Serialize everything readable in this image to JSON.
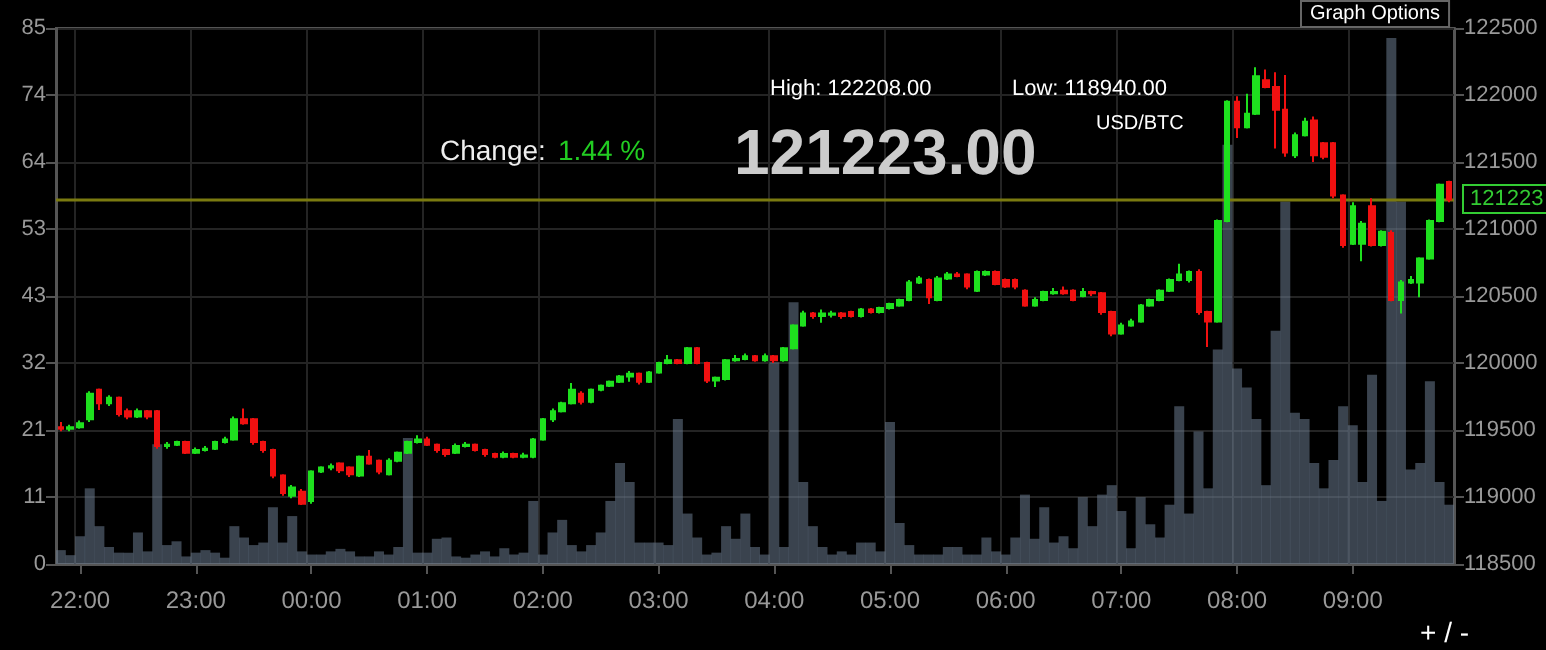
{
  "chart_data": {
    "type": "candlestick",
    "categories": [
      null,
      null,
      "22:00",
      null,
      null,
      null,
      null,
      null,
      null,
      null,
      null,
      null,
      null,
      null,
      "23:00",
      null,
      null,
      null,
      null,
      null,
      null,
      null,
      null,
      null,
      null,
      null,
      "00:00",
      null,
      null,
      null,
      null,
      null,
      null,
      null,
      null,
      null,
      null,
      null,
      "01:00",
      null,
      null,
      null,
      null,
      null,
      null,
      null,
      null,
      null,
      null,
      null,
      "02:00",
      null,
      null,
      null,
      null,
      null,
      null,
      null,
      null,
      null,
      null,
      null,
      "03:00",
      null,
      null,
      null,
      null,
      null,
      null,
      null,
      null,
      null,
      null,
      null,
      "04:00",
      null,
      null,
      null,
      null,
      null,
      null,
      null,
      null,
      null,
      null,
      null,
      "05:00",
      null,
      null,
      null,
      null,
      null,
      null,
      null,
      null,
      null,
      null,
      null,
      "06:00",
      null,
      null,
      null,
      null,
      null,
      null,
      null,
      null,
      null,
      null,
      null,
      "07:00",
      null,
      null,
      null,
      null,
      null,
      null,
      null,
      null,
      null,
      null,
      null,
      "08:00",
      null,
      null,
      null,
      null,
      null,
      null,
      null,
      null,
      null,
      null,
      null,
      "09:00",
      null,
      null,
      null,
      null,
      null,
      null,
      null,
      null,
      null,
      null
    ],
    "ylim": [
      0,
      85
    ],
    "yticks": [
      0,
      {
        "value": 10.625,
        "label": "11"
      },
      {
        "value": 21.25,
        "label": "21"
      },
      {
        "value": 31.875,
        "label": "32"
      },
      {
        "value": 42.5,
        "label": "43"
      },
      {
        "value": 53.125,
        "label": "53"
      },
      {
        "value": 63.75,
        "label": "64"
      },
      {
        "value": 74.375,
        "label": "74"
      },
      85
    ],
    "y2lim": [
      118500,
      122500
    ],
    "y2ticks": [
      118500,
      119000,
      119500,
      120000,
      120500,
      121000,
      121500,
      122000,
      122500
    ],
    "grid": true,
    "series": [
      {
        "type": "bar",
        "axis": "y",
        "color": "#6a7a8e",
        "values": [
          2.2,
          1.4,
          4.4,
          12,
          6,
          2.7,
          1.8,
          1.8,
          5,
          2,
          19,
          3,
          3.6,
          1.2,
          1.8,
          2.2,
          1.8,
          1,
          6,
          4.2,
          3,
          3.4,
          9,
          3.4,
          7.6,
          2,
          1.5,
          1.5,
          2,
          2.4,
          2,
          1.2,
          1.2,
          2,
          1.5,
          2.7,
          20,
          1.8,
          1.8,
          4,
          4.2,
          1.2,
          1,
          1.5,
          2,
          1.2,
          2.5,
          1.5,
          1.8,
          10,
          1.5,
          5,
          7,
          3,
          2,
          3,
          5,
          10,
          16,
          13,
          3.4,
          3.4,
          3.4,
          3,
          23,
          8,
          4.2,
          1.5,
          1.8,
          6,
          4,
          8,
          2.7,
          1.5,
          32,
          2.7,
          41.5,
          13,
          6,
          2.7,
          1.5,
          2,
          1.5,
          3.4,
          3.4,
          2,
          22.5,
          6.5,
          3,
          1.5,
          1.5,
          1.5,
          2.7,
          2.7,
          1.5,
          1.5,
          4.2,
          2,
          1.5,
          4.2,
          11,
          4,
          9,
          3.4,
          4.4,
          2.5,
          10.6,
          6,
          11,
          12.5,
          8.4,
          2.5,
          10.6,
          6.3,
          4.2,
          9.4,
          25,
          8,
          21,
          12,
          34,
          66.5,
          31,
          28,
          23,
          12.5,
          37,
          57.5,
          24,
          23,
          16,
          12,
          16.5,
          25,
          22,
          13,
          30,
          10,
          83.4,
          57.5,
          15,
          16,
          29,
          13,
          9.4
        ]
      },
      {
        "axis": "y2",
        "ohlc": [
          [
            119520,
            119560,
            119490,
            119510
          ],
          [
            119510,
            119540,
            119490,
            119520
          ],
          [
            119520,
            119570,
            119510,
            119550
          ],
          [
            119580,
            119790,
            119560,
            119770
          ],
          [
            119800,
            119810,
            119650,
            119700
          ],
          [
            119700,
            119760,
            119680,
            119740
          ],
          [
            119740,
            119750,
            119600,
            119620
          ],
          [
            119640,
            119660,
            119580,
            119600
          ],
          [
            119600,
            119660,
            119590,
            119640
          ],
          [
            119640,
            119650,
            119580,
            119600
          ],
          [
            119640,
            119650,
            119360,
            119380
          ],
          [
            119380,
            119410,
            119360,
            119390
          ],
          [
            119390,
            119420,
            119380,
            119410
          ],
          [
            119410,
            119420,
            119320,
            119330
          ],
          [
            119330,
            119370,
            119320,
            119350
          ],
          [
            119350,
            119380,
            119340,
            119360
          ],
          [
            119360,
            119420,
            119350,
            119410
          ],
          [
            119410,
            119450,
            119400,
            119430
          ],
          [
            119430,
            119600,
            119420,
            119580
          ],
          [
            119580,
            119660,
            119540,
            119550
          ],
          [
            119580,
            119590,
            119390,
            119410
          ],
          [
            119410,
            119420,
            119330,
            119350
          ],
          [
            119350,
            119360,
            119140,
            119160
          ],
          [
            119160,
            119170,
            119010,
            119030
          ],
          [
            119010,
            119090,
            118990,
            119070
          ],
          [
            119040,
            119060,
            118940,
            118950
          ],
          [
            118970,
            119200,
            118950,
            119190
          ],
          [
            119190,
            119230,
            119180,
            119220
          ],
          [
            119220,
            119250,
            119200,
            119230
          ],
          [
            119250,
            119260,
            119180,
            119200
          ],
          [
            119220,
            119230,
            119150,
            119170
          ],
          [
            119160,
            119310,
            119150,
            119300
          ],
          [
            119300,
            119350,
            119240,
            119250
          ],
          [
            119270,
            119280,
            119170,
            119190
          ],
          [
            119170,
            119290,
            119160,
            119270
          ],
          [
            119270,
            119340,
            119260,
            119330
          ],
          [
            119330,
            119420,
            119320,
            119410
          ],
          [
            119410,
            119460,
            119400,
            119430
          ],
          [
            119430,
            119450,
            119380,
            119390
          ],
          [
            119390,
            119400,
            119330,
            119350
          ],
          [
            119350,
            119360,
            119300,
            119320
          ],
          [
            119330,
            119400,
            119320,
            119380
          ],
          [
            119380,
            119410,
            119370,
            119390
          ],
          [
            119390,
            119400,
            119340,
            119350
          ],
          [
            119350,
            119360,
            119300,
            119320
          ],
          [
            119320,
            119330,
            119290,
            119300
          ],
          [
            119300,
            119340,
            119290,
            119320
          ],
          [
            119320,
            119330,
            119290,
            119300
          ],
          [
            119300,
            119330,
            119290,
            119310
          ],
          [
            119300,
            119440,
            119290,
            119430
          ],
          [
            119430,
            119590,
            119420,
            119580
          ],
          [
            119580,
            119660,
            119560,
            119640
          ],
          [
            119640,
            119710,
            119630,
            119700
          ],
          [
            119700,
            119850,
            119690,
            119800
          ],
          [
            119770,
            119790,
            119690,
            119710
          ],
          [
            119710,
            119810,
            119700,
            119800
          ],
          [
            119800,
            119840,
            119790,
            119830
          ],
          [
            119830,
            119870,
            119820,
            119860
          ],
          [
            119860,
            119910,
            119850,
            119900
          ],
          [
            119900,
            119940,
            119860,
            119920
          ],
          [
            119920,
            119930,
            119840,
            119860
          ],
          [
            119860,
            119940,
            119850,
            119930
          ],
          [
            119930,
            120010,
            119920,
            120000
          ],
          [
            120000,
            120060,
            119990,
            120020
          ],
          [
            120020,
            120030,
            119990,
            120000
          ],
          [
            120000,
            120120,
            119990,
            120110
          ],
          [
            120110,
            120120,
            119990,
            120000
          ],
          [
            120000,
            120010,
            119850,
            119870
          ],
          [
            119870,
            119900,
            119820,
            119890
          ],
          [
            119880,
            120030,
            119870,
            120020
          ],
          [
            120020,
            120060,
            120010,
            120030
          ],
          [
            120030,
            120070,
            120020,
            120050
          ],
          [
            120050,
            120060,
            120010,
            120020
          ],
          [
            120020,
            120070,
            120010,
            120050
          ],
          [
            120050,
            120060,
            120000,
            120020
          ],
          [
            120020,
            120120,
            120010,
            120110
          ],
          [
            120110,
            120290,
            120100,
            120280
          ],
          [
            120280,
            120390,
            120270,
            120370
          ],
          [
            120370,
            120380,
            120330,
            120350
          ],
          [
            120350,
            120400,
            120300,
            120370
          ],
          [
            120360,
            120390,
            120340,
            120370
          ],
          [
            120370,
            120380,
            120330,
            120350
          ],
          [
            120380,
            120390,
            120340,
            120350
          ],
          [
            120350,
            120410,
            120340,
            120400
          ],
          [
            120400,
            120410,
            120370,
            120380
          ],
          [
            120380,
            120420,
            120370,
            120410
          ],
          [
            120410,
            120450,
            120400,
            120440
          ],
          [
            120430,
            120480,
            120420,
            120470
          ],
          [
            120470,
            120620,
            120460,
            120600
          ],
          [
            120600,
            120650,
            120590,
            120630
          ],
          [
            120620,
            120630,
            120440,
            120490
          ],
          [
            120470,
            120650,
            120460,
            120630
          ],
          [
            120630,
            120680,
            120620,
            120660
          ],
          [
            120660,
            120680,
            120640,
            120650
          ],
          [
            120660,
            120670,
            120550,
            120570
          ],
          [
            120540,
            120690,
            120530,
            120680
          ],
          [
            120660,
            120690,
            120650,
            120680
          ],
          [
            120680,
            120690,
            120580,
            120590
          ],
          [
            120620,
            120630,
            120560,
            120570
          ],
          [
            120620,
            120630,
            120550,
            120570
          ],
          [
            120540,
            120550,
            120420,
            120430
          ],
          [
            120430,
            120490,
            120420,
            120470
          ],
          [
            120470,
            120540,
            120460,
            120530
          ],
          [
            120520,
            120560,
            120510,
            120530
          ],
          [
            120540,
            120570,
            120510,
            120520
          ],
          [
            120540,
            120550,
            120460,
            120470
          ],
          [
            120500,
            120560,
            120490,
            120530
          ],
          [
            120530,
            120540,
            120500,
            120520
          ],
          [
            120520,
            120530,
            120360,
            120380
          ],
          [
            120380,
            120390,
            120200,
            120220
          ],
          [
            120220,
            120300,
            120210,
            120280
          ],
          [
            120280,
            120330,
            120270,
            120310
          ],
          [
            120310,
            120440,
            120300,
            120430
          ],
          [
            120430,
            120480,
            120420,
            120470
          ],
          [
            120470,
            120550,
            120460,
            120540
          ],
          [
            120540,
            120630,
            120530,
            120620
          ],
          [
            120620,
            120740,
            120610,
            120660
          ],
          [
            120620,
            120690,
            120600,
            120680
          ],
          [
            120680,
            120700,
            120360,
            120380
          ],
          [
            120380,
            120390,
            120120,
            120310
          ],
          [
            120310,
            121070,
            120300,
            121060
          ],
          [
            121060,
            121960,
            121050,
            121950
          ],
          [
            121950,
            121990,
            121680,
            121760
          ],
          [
            121760,
            122010,
            121750,
            121860
          ],
          [
            121860,
            122208,
            121850,
            122140
          ],
          [
            122110,
            122190,
            122050,
            122060
          ],
          [
            122060,
            122170,
            121600,
            121890
          ],
          [
            121890,
            122150,
            121540,
            121570
          ],
          [
            121550,
            121720,
            121530,
            121700
          ],
          [
            121700,
            121830,
            121690,
            121800
          ],
          [
            121810,
            121840,
            121500,
            121550
          ],
          [
            121640,
            121650,
            121520,
            121540
          ],
          [
            121640,
            121650,
            121230,
            121250
          ],
          [
            121250,
            121260,
            120860,
            120880
          ],
          [
            120890,
            121200,
            120880,
            121170
          ],
          [
            120890,
            121060,
            120760,
            121040
          ],
          [
            121170,
            121230,
            120870,
            120880
          ],
          [
            120880,
            120990,
            120870,
            120980
          ],
          [
            120970,
            120990,
            120460,
            120470
          ],
          [
            120470,
            120620,
            120370,
            120600
          ],
          [
            120600,
            120650,
            120590,
            120620
          ],
          [
            120600,
            120790,
            120490,
            120780
          ],
          [
            120780,
            121070,
            120770,
            121060
          ],
          [
            121060,
            121340,
            121050,
            121330
          ],
          [
            121350,
            121360,
            121200,
            121220
          ]
        ],
        "colors": [
          "#f01010",
          "#1ee01e",
          "#1ee01e",
          "#1ee01e",
          "#f01010",
          "#1ee01e",
          "#f01010",
          "#f01010",
          "#1ee01e",
          "#f01010",
          "#f01010",
          "#1ee01e",
          "#1ee01e",
          "#f01010",
          "#1ee01e",
          "#1ee01e",
          "#1ee01e",
          "#1ee01e",
          "#1ee01e",
          "#f01010",
          "#f01010",
          "#f01010",
          "#f01010",
          "#f01010",
          "#1ee01e",
          "#f01010",
          "#1ee01e",
          "#1ee01e",
          "#1ee01e",
          "#f01010",
          "#f01010",
          "#1ee01e",
          "#f01010",
          "#f01010",
          "#1ee01e",
          "#1ee01e",
          "#1ee01e",
          "#1ee01e",
          "#f01010",
          "#f01010",
          "#f01010",
          "#1ee01e",
          "#1ee01e",
          "#f01010",
          "#f01010",
          "#f01010",
          "#1ee01e",
          "#f01010",
          "#1ee01e",
          "#1ee01e",
          "#1ee01e",
          "#1ee01e",
          "#1ee01e",
          "#1ee01e",
          "#f01010",
          "#1ee01e",
          "#1ee01e",
          "#1ee01e",
          "#1ee01e",
          "#1ee01e",
          "#f01010",
          "#1ee01e",
          "#1ee01e",
          "#1ee01e",
          "#f01010",
          "#1ee01e",
          "#f01010",
          "#f01010",
          "#1ee01e",
          "#1ee01e",
          "#1ee01e",
          "#1ee01e",
          "#f01010",
          "#1ee01e",
          "#f01010",
          "#1ee01e",
          "#1ee01e",
          "#1ee01e",
          "#f01010",
          "#1ee01e",
          "#1ee01e",
          "#f01010",
          "#f01010",
          "#1ee01e",
          "#f01010",
          "#1ee01e",
          "#1ee01e",
          "#1ee01e",
          "#1ee01e",
          "#1ee01e",
          "#f01010",
          "#1ee01e",
          "#1ee01e",
          "#f01010",
          "#f01010",
          "#1ee01e",
          "#1ee01e",
          "#f01010",
          "#f01010",
          "#f01010",
          "#f01010",
          "#1ee01e",
          "#1ee01e",
          "#1ee01e",
          "#f01010",
          "#f01010",
          "#1ee01e",
          "#f01010",
          "#f01010",
          "#f01010",
          "#1ee01e",
          "#1ee01e",
          "#1ee01e",
          "#1ee01e",
          "#1ee01e",
          "#1ee01e",
          "#1ee01e",
          "#1ee01e",
          "#f01010",
          "#f01010",
          "#1ee01e",
          "#1ee01e",
          "#f01010",
          "#1ee01e",
          "#1ee01e",
          "#f01010",
          "#f01010",
          "#f01010",
          "#1ee01e",
          "#1ee01e",
          "#f01010",
          "#f01010",
          "#f01010",
          "#f01010",
          "#1ee01e",
          "#1ee01e",
          "#f01010",
          "#1ee01e",
          "#f01010",
          "#1ee01e",
          "#1ee01e",
          "#1ee01e",
          "#1ee01e",
          "#1ee01e",
          "#f01010"
        ]
      }
    ],
    "ref_lines": [
      {
        "axis": "y2",
        "value": 121223,
        "label": "121223",
        "color": "#7a7a10"
      }
    ],
    "annotations": [
      "Change:",
      "1.44 %",
      "High: 122208.00",
      "Low: 118940.00",
      "121223.00",
      "USD/BTC",
      "Graph Options",
      "+ / -"
    ]
  }
}
